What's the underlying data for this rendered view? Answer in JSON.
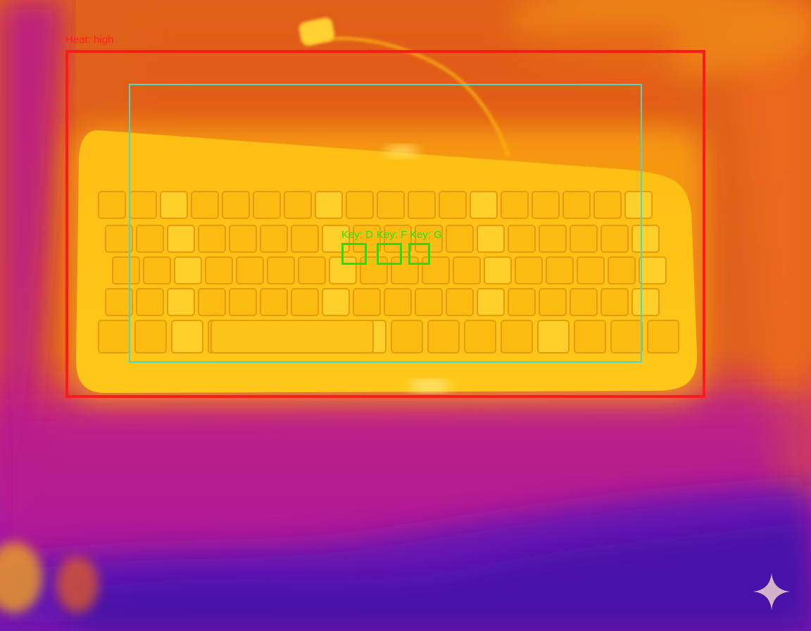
{
  "image": {
    "subject": "thermal-keyboard",
    "palette": [
      "#2a0a8a",
      "#a012b8",
      "#d0108a",
      "#e8551c",
      "#f5a010",
      "#ffd020"
    ]
  },
  "annotations": {
    "heat_region": {
      "label": "Heat: high",
      "color": "#ff1a1a"
    },
    "keyboard_region": {
      "color": "#48d7c8"
    },
    "keys": [
      {
        "label": "Key: D",
        "color": "#22e010"
      },
      {
        "label": "Key: F",
        "color": "#22e010"
      },
      {
        "label": "Key: G",
        "color": "#22e010"
      }
    ]
  },
  "watermark": {
    "icon": "sparkle-icon"
  }
}
